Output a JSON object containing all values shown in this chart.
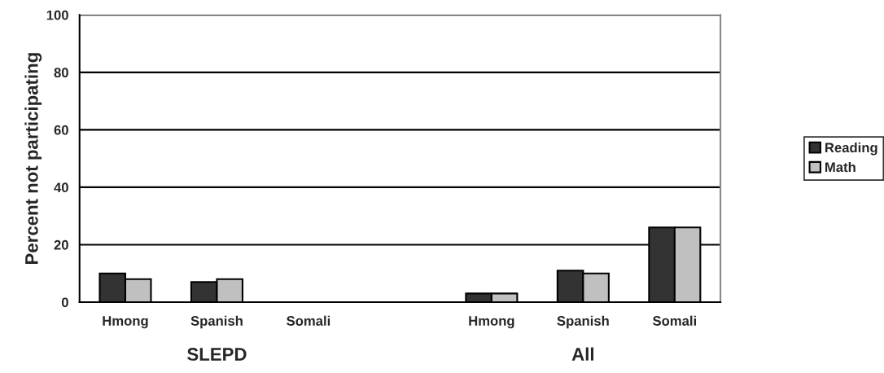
{
  "chart_data": {
    "type": "bar",
    "ylabel": "Percent not participating",
    "categories": [
      "Hmong",
      "Spanish",
      "Somali",
      null,
      "Hmong",
      "Spanish",
      "Somali"
    ],
    "series": [
      {
        "name": "Reading",
        "color": "#333333",
        "values": [
          10,
          7,
          null,
          null,
          3,
          11,
          26
        ]
      },
      {
        "name": "Math",
        "color": "#c0c0c0",
        "values": [
          8,
          8,
          null,
          null,
          3,
          10,
          26
        ]
      }
    ],
    "ylim": [
      0,
      100
    ],
    "yticks": [
      0,
      20,
      40,
      60,
      80,
      100
    ],
    "grid": "y",
    "legend": "right",
    "annotations": [
      "SLEPD",
      "All"
    ]
  }
}
